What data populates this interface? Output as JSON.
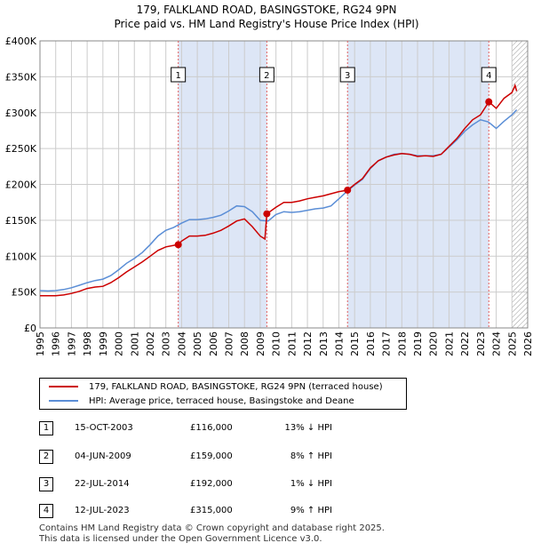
{
  "title_line1": "179, FALKLAND ROAD, BASINGSTOKE, RG24 9PN",
  "title_line2": "Price paid vs. HM Land Registry's House Price Index (HPI)",
  "colors": {
    "property": "#cc0000",
    "hpi": "#5b8ed6",
    "shade": "#dde6f6",
    "grid": "#cccccc",
    "marker_line": "#e06060",
    "future_hatch": "#999999"
  },
  "legend": {
    "property_label": "179, FALKLAND ROAD, BASINGSTOKE, RG24 9PN (terraced house)",
    "hpi_label": "HPI: Average price, terraced house, Basingstoke and Deane"
  },
  "sales": [
    {
      "num": "1",
      "date": "15-OCT-2003",
      "price": "£116,000",
      "hpi": "13% ↓ HPI"
    },
    {
      "num": "2",
      "date": "04-JUN-2009",
      "price": "£159,000",
      "hpi": "8% ↑ HPI"
    },
    {
      "num": "3",
      "date": "22-JUL-2014",
      "price": "£192,000",
      "hpi": "1% ↓ HPI"
    },
    {
      "num": "4",
      "date": "12-JUL-2023",
      "price": "£315,000",
      "hpi": "9% ↑ HPI"
    }
  ],
  "footer": {
    "line1": "Contains HM Land Registry data © Crown copyright and database right 2025.",
    "line2": "This data is licensed under the Open Government Licence v3.0."
  },
  "chart_data": {
    "type": "line",
    "title": "179, FALKLAND ROAD, BASINGSTOKE, RG24 9PN",
    "subtitle": "Price paid vs. HM Land Registry's House Price Index (HPI)",
    "xlim": [
      1995,
      2026
    ],
    "ylim": [
      0,
      400000
    ],
    "yticks": [
      {
        "value": 0,
        "label": "£0"
      },
      {
        "value": 50000,
        "label": "£50K"
      },
      {
        "value": 100000,
        "label": "£100K"
      },
      {
        "value": 150000,
        "label": "£150K"
      },
      {
        "value": 200000,
        "label": "£200K"
      },
      {
        "value": 250000,
        "label": "£250K"
      },
      {
        "value": 300000,
        "label": "£300K"
      },
      {
        "value": 350000,
        "label": "£350K"
      },
      {
        "value": 400000,
        "label": "£400K"
      }
    ],
    "xticks": [
      "1995",
      "1996",
      "1997",
      "1998",
      "1999",
      "2000",
      "2001",
      "2002",
      "2003",
      "2004",
      "2005",
      "2006",
      "2007",
      "2008",
      "2009",
      "2010",
      "2011",
      "2012",
      "2013",
      "2014",
      "2015",
      "2016",
      "2017",
      "2018",
      "2019",
      "2020",
      "2021",
      "2022",
      "2023",
      "2024",
      "2025",
      "2026"
    ],
    "shaded_regions": [
      [
        2003.79,
        2009.42
      ],
      [
        2014.55,
        2023.53
      ]
    ],
    "future_from": 2025.0,
    "grid": true,
    "series": [
      {
        "name": "HPI: Average price, terraced house, Basingstoke and Deane",
        "points": [
          [
            1995.0,
            52000
          ],
          [
            1995.5,
            51500
          ],
          [
            1996.0,
            52000
          ],
          [
            1996.5,
            53500
          ],
          [
            1997.0,
            56000
          ],
          [
            1997.5,
            59500
          ],
          [
            1998.0,
            63000
          ],
          [
            1998.5,
            66000
          ],
          [
            1999.0,
            68000
          ],
          [
            1999.5,
            73000
          ],
          [
            2000.0,
            81000
          ],
          [
            2000.5,
            90000
          ],
          [
            2001.0,
            97000
          ],
          [
            2001.5,
            105000
          ],
          [
            2002.0,
            116000
          ],
          [
            2002.5,
            128000
          ],
          [
            2003.0,
            136000
          ],
          [
            2003.5,
            140000
          ],
          [
            2004.0,
            146000
          ],
          [
            2004.5,
            151000
          ],
          [
            2005.0,
            151000
          ],
          [
            2005.5,
            152000
          ],
          [
            2006.0,
            154000
          ],
          [
            2006.5,
            157000
          ],
          [
            2007.0,
            163000
          ],
          [
            2007.5,
            170000
          ],
          [
            2008.0,
            169000
          ],
          [
            2008.5,
            162000
          ],
          [
            2009.0,
            150000
          ],
          [
            2009.5,
            149000
          ],
          [
            2010.0,
            158000
          ],
          [
            2010.5,
            162000
          ],
          [
            2011.0,
            161000
          ],
          [
            2011.5,
            162000
          ],
          [
            2012.0,
            164000
          ],
          [
            2012.5,
            166000
          ],
          [
            2013.0,
            167000
          ],
          [
            2013.5,
            170000
          ],
          [
            2014.0,
            180000
          ],
          [
            2014.5,
            190000
          ],
          [
            2015.0,
            199000
          ],
          [
            2015.5,
            207000
          ],
          [
            2016.0,
            222000
          ],
          [
            2016.5,
            233000
          ],
          [
            2017.0,
            238000
          ],
          [
            2017.5,
            242000
          ],
          [
            2018.0,
            243000
          ],
          [
            2018.5,
            242000
          ],
          [
            2019.0,
            240000
          ],
          [
            2019.5,
            240000
          ],
          [
            2020.0,
            240000
          ],
          [
            2020.5,
            242000
          ],
          [
            2021.0,
            252000
          ],
          [
            2021.5,
            262000
          ],
          [
            2022.0,
            274000
          ],
          [
            2022.5,
            283000
          ],
          [
            2023.0,
            290000
          ],
          [
            2023.5,
            287000
          ],
          [
            2024.0,
            278000
          ],
          [
            2024.5,
            288000
          ],
          [
            2025.0,
            297000
          ],
          [
            2025.3,
            304000
          ]
        ]
      },
      {
        "name": "179, FALKLAND ROAD, BASINGSTOKE, RG24 9PN (terraced house)",
        "points": [
          [
            1995.0,
            45000
          ],
          [
            1995.5,
            45000
          ],
          [
            1996.0,
            45000
          ],
          [
            1996.5,
            46000
          ],
          [
            1997.0,
            48000
          ],
          [
            1997.5,
            51000
          ],
          [
            1998.0,
            55000
          ],
          [
            1998.5,
            57000
          ],
          [
            1999.0,
            58000
          ],
          [
            1999.5,
            63000
          ],
          [
            2000.0,
            70000
          ],
          [
            2000.5,
            78000
          ],
          [
            2001.0,
            85000
          ],
          [
            2001.5,
            92000
          ],
          [
            2002.0,
            100000
          ],
          [
            2002.5,
            108000
          ],
          [
            2003.0,
            113000
          ],
          [
            2003.5,
            115000
          ],
          [
            2003.79,
            116000
          ],
          [
            2004.0,
            121000
          ],
          [
            2004.5,
            128000
          ],
          [
            2005.0,
            128000
          ],
          [
            2005.5,
            129000
          ],
          [
            2006.0,
            132000
          ],
          [
            2006.5,
            136000
          ],
          [
            2007.0,
            142000
          ],
          [
            2007.5,
            149000
          ],
          [
            2008.0,
            152000
          ],
          [
            2008.5,
            141000
          ],
          [
            2009.0,
            128000
          ],
          [
            2009.3,
            124000
          ],
          [
            2009.42,
            159000
          ],
          [
            2010.0,
            168000
          ],
          [
            2010.5,
            175000
          ],
          [
            2011.0,
            175000
          ],
          [
            2011.5,
            177000
          ],
          [
            2012.0,
            180000
          ],
          [
            2012.5,
            182000
          ],
          [
            2013.0,
            184000
          ],
          [
            2013.5,
            187000
          ],
          [
            2014.0,
            190000
          ],
          [
            2014.55,
            192000
          ],
          [
            2015.0,
            200000
          ],
          [
            2015.5,
            208000
          ],
          [
            2016.0,
            223000
          ],
          [
            2016.5,
            233000
          ],
          [
            2017.0,
            238000
          ],
          [
            2017.5,
            241000
          ],
          [
            2018.0,
            243000
          ],
          [
            2018.5,
            242000
          ],
          [
            2019.0,
            239000
          ],
          [
            2019.5,
            240000
          ],
          [
            2020.0,
            239000
          ],
          [
            2020.5,
            242000
          ],
          [
            2021.0,
            253000
          ],
          [
            2021.5,
            264000
          ],
          [
            2022.0,
            278000
          ],
          [
            2022.5,
            290000
          ],
          [
            2023.0,
            297000
          ],
          [
            2023.53,
            315000
          ],
          [
            2024.0,
            306000
          ],
          [
            2024.5,
            320000
          ],
          [
            2025.0,
            328000
          ],
          [
            2025.2,
            338000
          ],
          [
            2025.3,
            330000
          ]
        ]
      }
    ],
    "sale_markers": [
      {
        "label": "1",
        "x": 2003.79,
        "y": 116000
      },
      {
        "label": "2",
        "x": 2009.42,
        "y": 159000
      },
      {
        "label": "3",
        "x": 2014.55,
        "y": 192000
      },
      {
        "label": "4",
        "x": 2023.53,
        "y": 315000
      }
    ]
  }
}
